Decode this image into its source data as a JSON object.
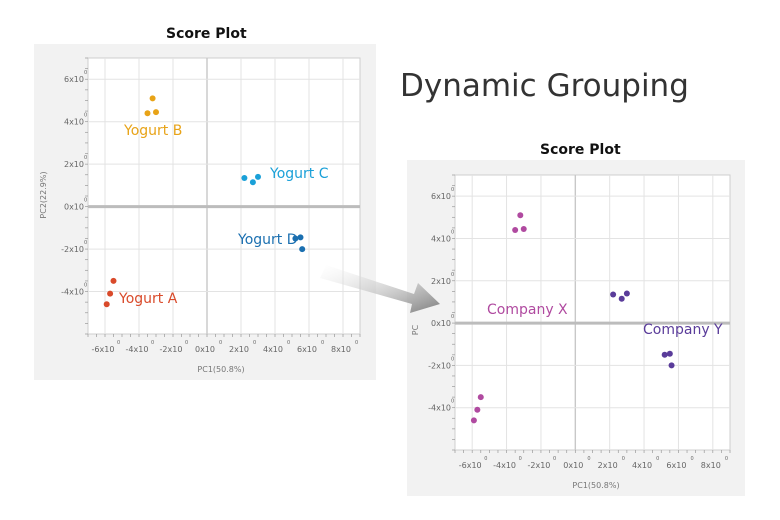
{
  "page_title": "Dynamic Grouping",
  "chart_data": [
    {
      "type": "scatter",
      "title": "Score Plot",
      "xlabel": "PC1(50.8%)",
      "ylabel": "PC2(22.9%)",
      "xlim": [
        -7,
        9
      ],
      "ylim": [
        -6,
        7
      ],
      "x_tick_labels": [
        "-6x10",
        "-4x10",
        "-2x10",
        "0x10",
        "2x10",
        "4x10",
        "6x10",
        "8x10"
      ],
      "y_tick_labels": [
        "6x10",
        "4x10",
        "2x10",
        "0x10",
        "-2x10",
        "-4x10"
      ],
      "tick_exponent": "0",
      "grid": true,
      "series": [
        {
          "name": "Yogurt B",
          "color": "#e8a317",
          "points": [
            [
              -3.2,
              5.1
            ],
            [
              -3.5,
              4.4
            ],
            [
              -3.0,
              4.45
            ]
          ]
        },
        {
          "name": "Yogurt C",
          "color": "#1aa0d8",
          "points": [
            [
              2.2,
              1.35
            ],
            [
              2.7,
              1.15
            ],
            [
              3.0,
              1.4
            ]
          ]
        },
        {
          "name": "Yogurt D",
          "color": "#1a6fb0",
          "points": [
            [
              5.2,
              -1.5
            ],
            [
              5.5,
              -1.45
            ],
            [
              5.6,
              -2.0
            ]
          ]
        },
        {
          "name": "Yogurt A",
          "color": "#d94a2a",
          "points": [
            [
              -5.5,
              -3.5
            ],
            [
              -5.7,
              -4.1
            ],
            [
              -5.9,
              -4.6
            ]
          ]
        }
      ]
    },
    {
      "type": "scatter",
      "title": "Score Plot",
      "xlabel": "PC1(50.8%)",
      "ylabel": "PC",
      "xlim": [
        -7,
        9
      ],
      "ylim": [
        -6,
        7
      ],
      "x_tick_labels": [
        "-6x10",
        "-4x10",
        "-2x10",
        "0x10",
        "2x10",
        "4x10",
        "6x10",
        "8x10"
      ],
      "y_tick_labels": [
        "6x10",
        "4x10",
        "2x10",
        "0x10",
        "-2x10",
        "-4x10"
      ],
      "tick_exponent": "0",
      "grid": true,
      "series": [
        {
          "name": "Company X",
          "color": "#b04aa0",
          "points": [
            [
              -3.2,
              5.1
            ],
            [
              -3.5,
              4.4
            ],
            [
              -3.0,
              4.45
            ],
            [
              -5.5,
              -3.5
            ],
            [
              -5.7,
              -4.1
            ],
            [
              -5.9,
              -4.6
            ]
          ]
        },
        {
          "name": "Company Y",
          "color": "#5a3c9a",
          "points": [
            [
              2.2,
              1.35
            ],
            [
              2.7,
              1.15
            ],
            [
              3.0,
              1.4
            ],
            [
              5.2,
              -1.5
            ],
            [
              5.5,
              -1.45
            ],
            [
              5.6,
              -2.0
            ]
          ]
        }
      ]
    }
  ],
  "arrow_color": "#8a8a8a"
}
